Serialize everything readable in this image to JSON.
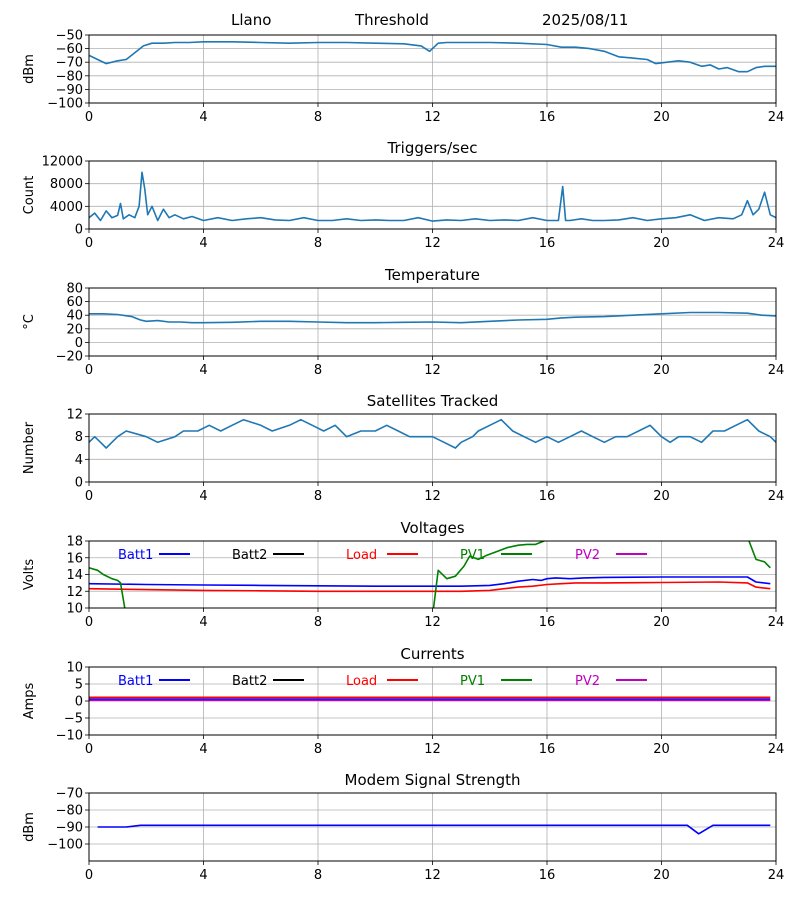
{
  "header": {
    "site": "Llano",
    "mode": "Threshold",
    "date": "2025/08/11"
  },
  "colors": {
    "default_line": "#1f77b4",
    "grid": "#b0b0b0",
    "batt1": "#0000ff",
    "batt2": "#000000",
    "load": "#ff0000",
    "pv1": "#008000",
    "pv2": "#bf00bf",
    "modem": "#0000ff"
  },
  "chart_data": [
    {
      "type": "line",
      "title": "",
      "ylabel": "dBm",
      "xlim": [
        0,
        24
      ],
      "ylim": [
        -100,
        -50
      ],
      "xticks": [
        0,
        4,
        8,
        12,
        16,
        20,
        24
      ],
      "yticks": [
        -100,
        -90,
        -80,
        -70,
        -60,
        -50
      ],
      "grid": true,
      "series": [
        {
          "color_key": "default_line",
          "x": [
            0,
            0.3,
            0.6,
            1.0,
            1.3,
            1.6,
            1.9,
            2.2,
            2.6,
            3.0,
            3.5,
            4.0,
            5.0,
            6.0,
            7.0,
            8.0,
            9.0,
            10.0,
            11.0,
            11.6,
            11.9,
            12.2,
            12.5,
            13.0,
            14.0,
            15.0,
            16.0,
            16.5,
            17.0,
            17.5,
            18.0,
            18.5,
            19.0,
            19.5,
            19.8,
            20.2,
            20.6,
            21.0,
            21.4,
            21.7,
            22.0,
            22.3,
            22.7,
            23.0,
            23.3,
            23.6,
            24.0
          ],
          "y": [
            -65,
            -68,
            -71,
            -69,
            -68,
            -63,
            -58,
            -56,
            -56,
            -55.5,
            -55.5,
            -55,
            -55,
            -55.5,
            -56,
            -55.5,
            -55.5,
            -56,
            -56.5,
            -58,
            -62,
            -56,
            -55.5,
            -55.5,
            -55.5,
            -56,
            -57,
            -59,
            -59,
            -60,
            -62,
            -66,
            -67,
            -68,
            -71,
            -70,
            -69,
            -70,
            -73,
            -72,
            -75,
            -74,
            -77,
            -77,
            -74,
            -73,
            -73
          ]
        }
      ]
    },
    {
      "type": "line",
      "title": "Triggers/sec",
      "ylabel": "Count",
      "xlim": [
        0,
        24
      ],
      "ylim": [
        0,
        12000
      ],
      "xticks": [
        0,
        4,
        8,
        12,
        16,
        20,
        24
      ],
      "yticks": [
        0,
        4000,
        8000,
        12000
      ],
      "grid": true,
      "series": [
        {
          "color_key": "default_line",
          "x": [
            0,
            0.2,
            0.4,
            0.6,
            0.8,
            1.0,
            1.1,
            1.2,
            1.4,
            1.6,
            1.75,
            1.85,
            1.95,
            2.05,
            2.2,
            2.4,
            2.6,
            2.8,
            3.0,
            3.3,
            3.6,
            4.0,
            4.5,
            5.0,
            5.5,
            6.0,
            6.5,
            7.0,
            7.5,
            8.0,
            8.5,
            9.0,
            9.5,
            10.0,
            10.5,
            11.0,
            11.5,
            12.0,
            12.5,
            13.0,
            13.5,
            14.0,
            14.5,
            15.0,
            15.5,
            16.0,
            16.4,
            16.55,
            16.65,
            16.8,
            17.2,
            17.6,
            18.0,
            18.5,
            19.0,
            19.5,
            20.0,
            20.5,
            21.0,
            21.5,
            22.0,
            22.5,
            22.8,
            23.0,
            23.2,
            23.4,
            23.6,
            23.8,
            24.0
          ],
          "y": [
            2000,
            2800,
            1500,
            3200,
            2000,
            2400,
            4500,
            1800,
            2500,
            2000,
            4000,
            10000,
            7000,
            2500,
            4000,
            1500,
            3500,
            2000,
            2500,
            1800,
            2200,
            1500,
            2000,
            1500,
            1800,
            2000,
            1600,
            1500,
            2000,
            1500,
            1500,
            1800,
            1500,
            1600,
            1500,
            1500,
            2000,
            1400,
            1600,
            1500,
            1800,
            1500,
            1600,
            1500,
            2000,
            1500,
            1500,
            7500,
            1500,
            1500,
            1800,
            1500,
            1500,
            1600,
            2000,
            1500,
            1800,
            2000,
            2500,
            1500,
            2000,
            1800,
            2500,
            5000,
            2500,
            3500,
            6500,
            2500,
            2000
          ]
        }
      ]
    },
    {
      "type": "line",
      "title": "Temperature",
      "ylabel": "°C",
      "xlim": [
        0,
        24
      ],
      "ylim": [
        -20,
        80
      ],
      "xticks": [
        0,
        4,
        8,
        12,
        16,
        20,
        24
      ],
      "yticks": [
        -20,
        0,
        20,
        40,
        60,
        80
      ],
      "grid": true,
      "series": [
        {
          "color_key": "default_line",
          "x": [
            0,
            0.5,
            1.0,
            1.5,
            1.8,
            2.0,
            2.4,
            2.8,
            3.2,
            3.6,
            4.0,
            5.0,
            6.0,
            7.0,
            8.0,
            9.0,
            10.0,
            11.0,
            12.0,
            13.0,
            14.0,
            15.0,
            16.0,
            16.5,
            17.0,
            18.0,
            19.0,
            20.0,
            21.0,
            22.0,
            23.0,
            23.5,
            24.0
          ],
          "y": [
            42,
            42,
            41,
            38,
            33,
            31,
            32,
            30,
            30,
            29,
            29,
            29.5,
            31,
            31,
            30,
            29,
            29,
            29.5,
            30,
            29,
            31,
            33,
            34,
            36,
            37,
            38,
            40,
            42,
            44,
            44,
            43,
            40,
            39
          ]
        }
      ]
    },
    {
      "type": "line",
      "title": "Satellites Tracked",
      "ylabel": "Number",
      "xlim": [
        0,
        24
      ],
      "ylim": [
        0,
        12
      ],
      "xticks": [
        0,
        4,
        8,
        12,
        16,
        20,
        24
      ],
      "yticks": [
        0,
        4,
        8,
        12
      ],
      "grid": true,
      "series": [
        {
          "color_key": "default_line",
          "x": [
            0,
            0.2,
            0.4,
            0.6,
            0.8,
            1.0,
            1.3,
            2.0,
            2.4,
            3.0,
            3.3,
            3.8,
            4.2,
            4.6,
            5.0,
            5.4,
            6.0,
            6.4,
            7.0,
            7.4,
            7.8,
            8.2,
            8.6,
            9.0,
            9.5,
            10.0,
            10.4,
            10.8,
            11.2,
            11.8,
            12.0,
            12.4,
            12.8,
            13.0,
            13.4,
            13.6,
            14.0,
            14.4,
            14.8,
            15.2,
            15.6,
            16.0,
            16.4,
            16.8,
            17.2,
            17.6,
            18.0,
            18.4,
            18.8,
            19.2,
            19.6,
            19.8,
            20.0,
            20.3,
            20.6,
            21.0,
            21.4,
            21.8,
            22.2,
            22.6,
            23.0,
            23.4,
            23.8,
            24.0
          ],
          "y": [
            7,
            8,
            7,
            6,
            7,
            8,
            9,
            8,
            7,
            8,
            9,
            9,
            10,
            9,
            10,
            11,
            10,
            9,
            10,
            11,
            10,
            9,
            10,
            8,
            9,
            9,
            10,
            9,
            8,
            8,
            8,
            7,
            6,
            7,
            8,
            9,
            10,
            11,
            9,
            8,
            7,
            8,
            7,
            8,
            9,
            8,
            7,
            8,
            8,
            9,
            10,
            9,
            8,
            7,
            8,
            8,
            7,
            9,
            9,
            10,
            11,
            9,
            8,
            7
          ]
        }
      ]
    },
    {
      "type": "line",
      "title": "Voltages",
      "ylabel": "Volts",
      "xlim": [
        0,
        24
      ],
      "ylim": [
        10,
        18
      ],
      "xticks": [
        0,
        4,
        8,
        12,
        16,
        20,
        24
      ],
      "yticks": [
        10,
        12,
        14,
        16,
        18
      ],
      "grid": true,
      "legend": "top, inside, single row",
      "series": [
        {
          "name": "Batt1",
          "color_key": "batt1",
          "x": [
            0,
            2,
            4,
            6,
            8,
            10,
            11,
            12,
            13,
            14,
            14.5,
            15,
            15.5,
            15.8,
            16,
            16.3,
            16.8,
            17.3,
            18,
            20,
            22,
            23,
            23.3,
            23.8
          ],
          "y": [
            12.9,
            12.8,
            12.75,
            12.7,
            12.65,
            12.6,
            12.6,
            12.6,
            12.6,
            12.7,
            12.9,
            13.2,
            13.4,
            13.3,
            13.5,
            13.6,
            13.5,
            13.6,
            13.65,
            13.7,
            13.7,
            13.7,
            13.1,
            12.9
          ]
        },
        {
          "name": "Batt2",
          "color_key": "batt2",
          "x": [],
          "y": []
        },
        {
          "name": "Load",
          "color_key": "load",
          "x": [
            0,
            2,
            4,
            6,
            8,
            10,
            12,
            13,
            14,
            14.5,
            15,
            15.5,
            16,
            16.5,
            17,
            18,
            20,
            22,
            23,
            23.3,
            23.8
          ],
          "y": [
            12.3,
            12.2,
            12.1,
            12.05,
            12.0,
            12.0,
            12.0,
            12.0,
            12.1,
            12.3,
            12.5,
            12.6,
            12.8,
            12.9,
            13.0,
            13.0,
            13.05,
            13.1,
            13.0,
            12.5,
            12.3
          ]
        },
        {
          "name": "PV1",
          "color_key": "pv1",
          "x": [
            0,
            0.3,
            0.5,
            0.8,
            1.0,
            1.1,
            1.3,
            12.0,
            12.2,
            12.5,
            12.8,
            13.1,
            13.3,
            13.6,
            13.9,
            14.3,
            14.6,
            15.0,
            15.3,
            15.6,
            15.9,
            16.2,
            23.0,
            23.3,
            23.6,
            23.8
          ],
          "y": [
            14.8,
            14.5,
            14.0,
            13.5,
            13.3,
            13.0,
            9.0,
            9.0,
            14.5,
            13.5,
            13.8,
            15.0,
            16.2,
            15.8,
            16.3,
            16.8,
            17.2,
            17.5,
            17.6,
            17.6,
            18.0,
            18.5,
            18.5,
            15.8,
            15.5,
            14.8
          ]
        },
        {
          "name": "PV2",
          "color_key": "pv2",
          "x": [],
          "y": []
        }
      ]
    },
    {
      "type": "line",
      "title": "Currents",
      "ylabel": "Amps",
      "xlim": [
        0,
        24
      ],
      "ylim": [
        -10,
        10
      ],
      "xticks": [
        0,
        4,
        8,
        12,
        16,
        20,
        24
      ],
      "yticks": [
        -10,
        -5,
        0,
        5,
        10
      ],
      "grid": true,
      "legend": "top, inside, single row",
      "series": [
        {
          "name": "Batt1",
          "color_key": "batt1",
          "x": [
            0,
            23.8
          ],
          "y": [
            0.6,
            0.6
          ]
        },
        {
          "name": "Batt2",
          "color_key": "batt2",
          "x": [],
          "y": []
        },
        {
          "name": "Load",
          "color_key": "load",
          "x": [
            0,
            23.8
          ],
          "y": [
            1.1,
            1.1
          ]
        },
        {
          "name": "PV1",
          "color_key": "pv1",
          "x": [],
          "y": []
        },
        {
          "name": "PV2",
          "color_key": "pv2",
          "x": [
            0,
            23.8
          ],
          "y": [
            0.2,
            0.2
          ]
        }
      ]
    },
    {
      "type": "line",
      "title": "Modem Signal Strength",
      "ylabel": "dBm",
      "xlim": [
        0,
        24
      ],
      "ylim": [
        -110,
        -70
      ],
      "xticks": [
        0,
        4,
        8,
        12,
        16,
        20,
        24
      ],
      "yticks": [
        -100,
        -90,
        -80,
        -70
      ],
      "grid": true,
      "series": [
        {
          "color_key": "modem",
          "x": [
            0.3,
            1.3,
            1.8,
            20.9,
            21.3,
            21.8,
            23.8
          ],
          "y": [
            -90,
            -90,
            -89,
            -89,
            -94,
            -89,
            -89
          ]
        }
      ]
    }
  ]
}
